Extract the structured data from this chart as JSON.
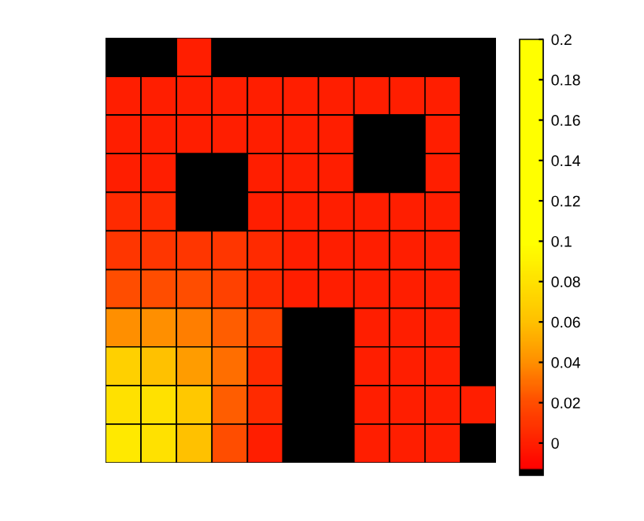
{
  "chart_data": {
    "type": "heatmap",
    "categories": [
      null,
      null,
      null,
      null,
      null,
      null,
      null,
      null,
      null,
      null,
      null
    ],
    "y_categories": [
      null,
      null,
      null,
      null,
      null,
      null,
      null,
      null,
      null,
      null,
      null
    ],
    "cells": [
      [
        -0.015,
        -0.015,
        0.0,
        -0.015,
        -0.015,
        -0.015,
        -0.015,
        -0.015,
        -0.015,
        -0.015,
        -0.015
      ],
      [
        0.0,
        0.0,
        0.0,
        0.0,
        0.0,
        0.0,
        0.0,
        0.0,
        0.0,
        0.0,
        -0.015
      ],
      [
        0.0,
        0.0,
        0.0,
        0.0,
        0.0,
        0.0,
        0.0,
        -0.015,
        -0.015,
        0.0,
        -0.015
      ],
      [
        0.0,
        0.0,
        -0.015,
        -0.015,
        0.0,
        0.0,
        0.0,
        -0.015,
        -0.015,
        0.0,
        -0.015
      ],
      [
        0.005,
        0.005,
        -0.015,
        -0.015,
        0.0,
        0.0,
        0.0,
        0.0,
        0.0,
        0.0,
        -0.015
      ],
      [
        0.01,
        0.01,
        0.01,
        0.01,
        0.005,
        0.0,
        0.0,
        0.0,
        0.0,
        0.0,
        -0.015
      ],
      [
        0.02,
        0.02,
        0.02,
        0.015,
        0.005,
        0.0,
        0.0,
        0.0,
        0.0,
        0.0,
        -0.015
      ],
      [
        0.04,
        0.04,
        0.035,
        0.025,
        0.015,
        -0.015,
        -0.015,
        0.0,
        0.0,
        0.0,
        -0.015
      ],
      [
        0.07,
        0.06,
        0.045,
        0.03,
        0.005,
        -0.015,
        -0.015,
        0.0,
        0.0,
        0.0,
        -0.015
      ],
      [
        0.08,
        0.08,
        0.065,
        0.025,
        0.005,
        -0.015,
        -0.015,
        0.0,
        0.0,
        0.0,
        0.0
      ],
      [
        0.085,
        0.08,
        0.06,
        0.02,
        0.0,
        -0.015,
        -0.015,
        0.0,
        0.0,
        0.0,
        -0.015
      ]
    ],
    "clim": [
      -0.016,
      0.2
    ],
    "cticks": [
      0,
      0.02,
      0.04,
      0.06,
      0.08,
      0.1,
      0.12,
      0.14,
      0.16,
      0.18,
      0.2
    ]
  }
}
